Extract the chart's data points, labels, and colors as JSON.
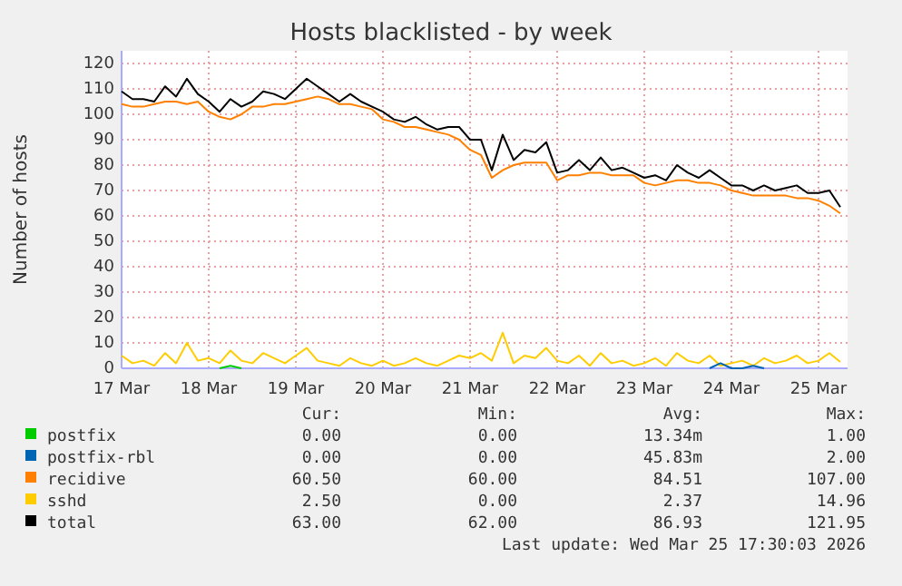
{
  "chart_data": {
    "type": "line",
    "title": "Hosts blacklisted - by week",
    "ylabel": "Number of hosts",
    "x": [
      "2026-03-17T00:00",
      "2026-03-17T03:00",
      "2026-03-17T06:00",
      "2026-03-17T09:00",
      "2026-03-17T12:00",
      "2026-03-17T15:00",
      "2026-03-17T18:00",
      "2026-03-17T21:00",
      "2026-03-18T00:00",
      "2026-03-18T03:00",
      "2026-03-18T06:00",
      "2026-03-18T09:00",
      "2026-03-18T12:00",
      "2026-03-18T15:00",
      "2026-03-18T18:00",
      "2026-03-18T21:00",
      "2026-03-19T00:00",
      "2026-03-19T03:00",
      "2026-03-19T06:00",
      "2026-03-19T09:00",
      "2026-03-19T12:00",
      "2026-03-19T15:00",
      "2026-03-19T18:00",
      "2026-03-19T21:00",
      "2026-03-20T00:00",
      "2026-03-20T03:00",
      "2026-03-20T06:00",
      "2026-03-20T09:00",
      "2026-03-20T12:00",
      "2026-03-20T15:00",
      "2026-03-20T18:00",
      "2026-03-20T21:00",
      "2026-03-21T00:00",
      "2026-03-21T03:00",
      "2026-03-21T06:00",
      "2026-03-21T09:00",
      "2026-03-21T12:00",
      "2026-03-21T15:00",
      "2026-03-21T18:00",
      "2026-03-21T21:00",
      "2026-03-22T00:00",
      "2026-03-22T03:00",
      "2026-03-22T06:00",
      "2026-03-22T09:00",
      "2026-03-22T12:00",
      "2026-03-22T15:00",
      "2026-03-22T18:00",
      "2026-03-22T21:00",
      "2026-03-23T00:00",
      "2026-03-23T03:00",
      "2026-03-23T06:00",
      "2026-03-23T09:00",
      "2026-03-23T12:00",
      "2026-03-23T15:00",
      "2026-03-23T18:00",
      "2026-03-23T21:00",
      "2026-03-24T00:00",
      "2026-03-24T03:00",
      "2026-03-24T06:00",
      "2026-03-24T09:00",
      "2026-03-24T12:00",
      "2026-03-24T15:00",
      "2026-03-24T18:00",
      "2026-03-24T21:00",
      "2026-03-25T00:00",
      "2026-03-25T03:00",
      "2026-03-25T06:00"
    ],
    "series": [
      {
        "name": "postfix",
        "color": "#00cc00",
        "values": [
          null,
          null,
          null,
          null,
          null,
          null,
          null,
          null,
          null,
          0,
          1,
          0,
          null,
          null,
          null,
          null,
          null,
          null,
          null,
          null,
          null,
          null,
          null,
          null,
          null,
          null,
          null,
          null,
          null,
          null,
          null,
          null,
          null,
          null,
          null,
          null,
          null,
          null,
          null,
          null,
          null,
          null,
          null,
          null,
          null,
          null,
          null,
          null,
          null,
          null,
          null,
          null,
          null,
          null,
          null,
          null,
          null,
          null,
          null,
          null,
          null,
          null,
          null,
          null,
          null,
          null,
          null
        ]
      },
      {
        "name": "postfix-rbl",
        "color": "#0066b3",
        "values": [
          null,
          null,
          null,
          null,
          null,
          null,
          null,
          null,
          null,
          null,
          null,
          null,
          null,
          null,
          null,
          null,
          null,
          null,
          null,
          null,
          null,
          null,
          null,
          null,
          null,
          null,
          null,
          null,
          null,
          null,
          null,
          null,
          null,
          null,
          null,
          null,
          null,
          null,
          null,
          null,
          null,
          null,
          null,
          null,
          null,
          null,
          null,
          null,
          null,
          null,
          null,
          null,
          null,
          null,
          0,
          2,
          0,
          0,
          1,
          0,
          null,
          null,
          null,
          null,
          null,
          null,
          null
        ]
      },
      {
        "name": "recidive",
        "color": "#ff8000",
        "values": [
          104,
          103,
          103,
          104,
          105,
          105,
          104,
          105,
          101,
          99,
          98,
          100,
          103,
          103,
          104,
          104,
          105,
          106,
          107,
          106,
          104,
          104,
          103,
          102,
          98,
          97,
          95,
          95,
          94,
          93,
          92,
          90,
          86,
          84,
          75,
          78,
          80,
          81,
          81,
          81,
          74,
          76,
          76,
          77,
          77,
          76,
          76,
          76,
          73,
          72,
          73,
          74,
          74,
          73,
          73,
          72,
          70,
          69,
          68,
          68,
          68,
          68,
          67,
          67,
          66,
          64,
          61
        ]
      },
      {
        "name": "sshd",
        "color": "#ffcc00",
        "values": [
          5,
          2,
          3,
          1,
          6,
          2,
          10,
          3,
          4,
          2,
          7,
          3,
          2,
          6,
          4,
          2,
          5,
          8,
          3,
          2,
          1,
          4,
          2,
          1,
          3,
          1,
          2,
          4,
          2,
          1,
          3,
          5,
          4,
          6,
          3,
          14,
          2,
          5,
          4,
          8,
          3,
          2,
          5,
          1,
          6,
          2,
          3,
          1,
          2,
          4,
          1,
          6,
          3,
          2,
          5,
          1,
          2,
          3,
          1,
          4,
          2,
          3,
          5,
          2,
          3,
          6,
          2.5
        ]
      },
      {
        "name": "total",
        "color": "#000000",
        "values": [
          109,
          106,
          106,
          105,
          111,
          107,
          114,
          108,
          105,
          101,
          106,
          103,
          105,
          109,
          108,
          106,
          110,
          114,
          111,
          108,
          105,
          108,
          105,
          103,
          101,
          98,
          97,
          99,
          96,
          94,
          95,
          95,
          90,
          90,
          78,
          92,
          82,
          86,
          85,
          89,
          77,
          78,
          82,
          78,
          83,
          78,
          79,
          77,
          75,
          76,
          74,
          80,
          77,
          75,
          78,
          75,
          72,
          72,
          70,
          72,
          70,
          71,
          72,
          69,
          69,
          70,
          63.5
        ]
      }
    ],
    "xlim": [
      "2026-03-17T00:00",
      "2026-03-25T08:00"
    ],
    "xticks": [
      {
        "value": "2026-03-17T00:00",
        "label": "17 Mar"
      },
      {
        "value": "2026-03-18T00:00",
        "label": "18 Mar"
      },
      {
        "value": "2026-03-19T00:00",
        "label": "19 Mar"
      },
      {
        "value": "2026-03-20T00:00",
        "label": "20 Mar"
      },
      {
        "value": "2026-03-21T00:00",
        "label": "21 Mar"
      },
      {
        "value": "2026-03-22T00:00",
        "label": "22 Mar"
      },
      {
        "value": "2026-03-23T00:00",
        "label": "23 Mar"
      },
      {
        "value": "2026-03-24T00:00",
        "label": "24 Mar"
      },
      {
        "value": "2026-03-25T00:00",
        "label": "25 Mar"
      }
    ],
    "ylim": [
      0,
      125
    ],
    "yticks": [
      0,
      10,
      20,
      30,
      40,
      50,
      60,
      70,
      80,
      90,
      100,
      110,
      120
    ],
    "grid": true,
    "legend": "bottom",
    "line_style": "solid",
    "annotations": [
      "Cur:",
      "Min:",
      "Avg:",
      "Max:",
      "0.00",
      "0.00",
      "13.34m",
      "1.00",
      "0.00",
      "0.00",
      "45.83m",
      "2.00",
      "60.50",
      "60.00",
      "84.51",
      "107.00",
      "2.50",
      "0.00",
      "2.37",
      "14.96",
      "63.00",
      "62.00",
      "86.93",
      "121.95",
      "Last update: Wed Mar 25 17:30:03 2026"
    ]
  }
}
